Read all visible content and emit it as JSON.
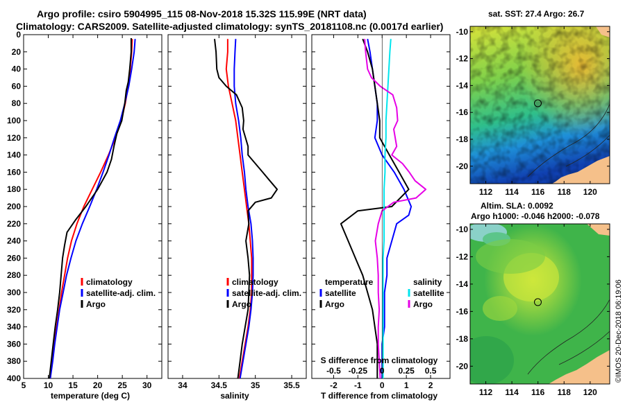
{
  "title": {
    "line1": "Argo profile: csiro 5904995_115 08-Nov-2018 15.32S 115.99E (NRT data)",
    "line2": "Climatology: CARS2009. Satellite-adjusted climatology: synTS_20181108.nc (0.0017d earlier)"
  },
  "colors": {
    "climatology": "#ff0000",
    "satellite": "#0000ff",
    "argo": "#000000",
    "sat_sal": "#00e5ee",
    "argo_sal_diff": "#e600e6",
    "land": "#f5c08a"
  },
  "chart_data": [
    {
      "type": "line",
      "id": "temperature",
      "xlabel": "temperature (deg C)",
      "ylabel": "",
      "xlim": [
        5,
        33
      ],
      "ylim": [
        400,
        0
      ],
      "xticks": [
        5,
        10,
        15,
        20,
        25,
        30
      ],
      "yticks": [
        0,
        20,
        40,
        60,
        80,
        100,
        120,
        140,
        160,
        180,
        200,
        220,
        240,
        260,
        280,
        300,
        320,
        340,
        360,
        380,
        400
      ],
      "legend": [
        "climatology",
        "satellite-adj. clim.",
        "Argo"
      ],
      "series": [
        {
          "name": "climatology",
          "color": "#ff0000",
          "points": [
            [
              27.0,
              5
            ],
            [
              26.9,
              20
            ],
            [
              26.6,
              40
            ],
            [
              26.2,
              60
            ],
            [
              25.6,
              80
            ],
            [
              24.8,
              100
            ],
            [
              23.6,
              120
            ],
            [
              22.2,
              140
            ],
            [
              20.6,
              160
            ],
            [
              18.9,
              180
            ],
            [
              17.2,
              200
            ],
            [
              15.8,
              220
            ],
            [
              14.7,
              240
            ],
            [
              13.9,
              260
            ],
            [
              13.3,
              280
            ],
            [
              12.7,
              300
            ],
            [
              12.2,
              320
            ],
            [
              11.7,
              340
            ],
            [
              11.2,
              360
            ],
            [
              10.8,
              380
            ],
            [
              10.4,
              400
            ]
          ]
        },
        {
          "name": "satellite-adj. clim.",
          "color": "#0000ff",
          "points": [
            [
              27.6,
              5
            ],
            [
              27.4,
              20
            ],
            [
              26.9,
              40
            ],
            [
              26.3,
              60
            ],
            [
              25.5,
              80
            ],
            [
              24.6,
              100
            ],
            [
              23.4,
              120
            ],
            [
              22.3,
              140
            ],
            [
              21.1,
              160
            ],
            [
              19.8,
              180
            ],
            [
              18.4,
              200
            ],
            [
              16.9,
              220
            ],
            [
              15.6,
              240
            ],
            [
              14.6,
              260
            ],
            [
              13.7,
              280
            ],
            [
              13.0,
              300
            ],
            [
              12.3,
              320
            ],
            [
              11.8,
              340
            ],
            [
              11.3,
              360
            ],
            [
              10.9,
              380
            ],
            [
              10.4,
              400
            ]
          ]
        },
        {
          "name": "Argo",
          "color": "#000000",
          "points": [
            [
              26.8,
              4
            ],
            [
              26.8,
              20
            ],
            [
              26.5,
              40
            ],
            [
              26.2,
              55
            ],
            [
              25.8,
              65
            ],
            [
              25.5,
              80
            ],
            [
              24.9,
              100
            ],
            [
              23.9,
              115
            ],
            [
              23.3,
              130
            ],
            [
              22.8,
              145
            ],
            [
              21.9,
              160
            ],
            [
              20.0,
              180
            ],
            [
              17.6,
              200
            ],
            [
              15.6,
              215
            ],
            [
              13.8,
              230
            ],
            [
              13.3,
              245
            ],
            [
              12.9,
              260
            ],
            [
              12.6,
              280
            ],
            [
              12.3,
              300
            ],
            [
              11.9,
              320
            ],
            [
              11.4,
              340
            ],
            [
              11.0,
              360
            ],
            [
              10.6,
              380
            ],
            [
              10.2,
              400
            ]
          ]
        }
      ]
    },
    {
      "type": "line",
      "id": "salinity",
      "xlabel": "salinity",
      "xlim": [
        33.8,
        35.7
      ],
      "ylim": [
        400,
        0
      ],
      "xticks": [
        34,
        34.5,
        35,
        35.5
      ],
      "legend": [
        "climatology",
        "satellite-adj. clim.",
        "Argo"
      ],
      "series": [
        {
          "name": "climatology",
          "color": "#ff0000",
          "points": [
            [
              34.62,
              5
            ],
            [
              34.62,
              20
            ],
            [
              34.6,
              40
            ],
            [
              34.63,
              60
            ],
            [
              34.68,
              80
            ],
            [
              34.73,
              100
            ],
            [
              34.76,
              120
            ],
            [
              34.79,
              140
            ],
            [
              34.82,
              160
            ],
            [
              34.85,
              180
            ],
            [
              34.88,
              200
            ],
            [
              34.91,
              220
            ],
            [
              34.93,
              240
            ],
            [
              34.95,
              260
            ],
            [
              34.95,
              280
            ],
            [
              34.95,
              300
            ],
            [
              34.93,
              320
            ],
            [
              34.9,
              340
            ],
            [
              34.86,
              360
            ],
            [
              34.82,
              380
            ],
            [
              34.78,
              400
            ]
          ]
        },
        {
          "name": "satellite-adj. clim.",
          "color": "#0000ff",
          "points": [
            [
              34.73,
              5
            ],
            [
              34.72,
              20
            ],
            [
              34.71,
              40
            ],
            [
              34.71,
              60
            ],
            [
              34.73,
              80
            ],
            [
              34.77,
              100
            ],
            [
              34.8,
              120
            ],
            [
              34.82,
              140
            ],
            [
              34.85,
              160
            ],
            [
              34.87,
              180
            ],
            [
              34.9,
              200
            ],
            [
              34.94,
              220
            ],
            [
              34.96,
              240
            ],
            [
              34.97,
              260
            ],
            [
              34.97,
              280
            ],
            [
              34.96,
              300
            ],
            [
              34.94,
              320
            ],
            [
              34.91,
              340
            ],
            [
              34.87,
              360
            ],
            [
              34.83,
              380
            ],
            [
              34.79,
              400
            ]
          ]
        },
        {
          "name": "Argo",
          "color": "#000000",
          "points": [
            [
              34.44,
              5
            ],
            [
              34.46,
              20
            ],
            [
              34.47,
              40
            ],
            [
              34.5,
              50
            ],
            [
              34.6,
              60
            ],
            [
              34.74,
              70
            ],
            [
              34.82,
              85
            ],
            [
              34.84,
              100
            ],
            [
              34.83,
              110
            ],
            [
              34.9,
              130
            ],
            [
              34.9,
              140
            ],
            [
              35.0,
              150
            ],
            [
              35.1,
              160
            ],
            [
              35.2,
              170
            ],
            [
              35.3,
              180
            ],
            [
              35.22,
              190
            ],
            [
              35.0,
              195
            ],
            [
              34.9,
              205
            ],
            [
              34.91,
              220
            ],
            [
              34.87,
              240
            ],
            [
              34.9,
              260
            ],
            [
              34.92,
              280
            ],
            [
              34.91,
              300
            ],
            [
              34.9,
              320
            ],
            [
              34.86,
              340
            ],
            [
              34.82,
              360
            ],
            [
              34.79,
              380
            ],
            [
              34.76,
              400
            ]
          ]
        }
      ]
    },
    {
      "type": "line",
      "id": "difference",
      "xlabel": "T difference from climatology",
      "x2label": "S difference from climatology",
      "xlim": [
        -2.9,
        2.8
      ],
      "ylim": [
        400,
        0
      ],
      "xticks": [
        -2,
        -1,
        0,
        1,
        2
      ],
      "s_ticks": [
        -0.5,
        -0.25,
        0,
        0.25,
        0.5
      ],
      "s_ticklabels": [
        "-0.5",
        "-0.25",
        "0",
        "0.25",
        "0.5"
      ],
      "legend_temperature": {
        "title": "temperature",
        "items": [
          "satellite",
          "Argo"
        ]
      },
      "legend_salinity": {
        "title": "salinity",
        "items": [
          "satellite",
          "Argo"
        ]
      },
      "series": [
        {
          "name": "T satellite",
          "color": "#0000ff",
          "points": [
            [
              -0.6,
              5
            ],
            [
              -0.5,
              20
            ],
            [
              -0.4,
              40
            ],
            [
              -0.3,
              60
            ],
            [
              -0.2,
              80
            ],
            [
              -0.2,
              100
            ],
            [
              -0.3,
              120
            ],
            [
              0.0,
              140
            ],
            [
              0.5,
              160
            ],
            [
              0.9,
              180
            ],
            [
              1.2,
              200
            ],
            [
              1.1,
              210
            ],
            [
              0.6,
              220
            ],
            [
              0.4,
              240
            ],
            [
              0.2,
              260
            ],
            [
              0.2,
              280
            ],
            [
              0.1,
              300
            ],
            [
              0.1,
              320
            ],
            [
              0.1,
              340
            ],
            [
              0.0,
              360
            ],
            [
              0.0,
              380
            ],
            [
              0.0,
              400
            ]
          ]
        },
        {
          "name": "T Argo",
          "color": "#000000",
          "points": [
            [
              -0.8,
              5
            ],
            [
              -0.6,
              20
            ],
            [
              -0.4,
              40
            ],
            [
              -0.3,
              60
            ],
            [
              -0.2,
              80
            ],
            [
              -0.1,
              100
            ],
            [
              -0.1,
              120
            ],
            [
              0.3,
              140
            ],
            [
              0.7,
              160
            ],
            [
              1.1,
              180
            ],
            [
              0.4,
              200
            ],
            [
              -1.0,
              205
            ],
            [
              -1.7,
              220
            ],
            [
              -1.4,
              240
            ],
            [
              -1.1,
              260
            ],
            [
              -0.8,
              280
            ],
            [
              -0.6,
              300
            ],
            [
              -0.4,
              320
            ],
            [
              -0.3,
              340
            ],
            [
              -0.2,
              360
            ],
            [
              -0.2,
              380
            ],
            [
              -0.2,
              400
            ]
          ]
        },
        {
          "name": "S satellite",
          "color": "#00e5ee",
          "points": [
            [
              0.09,
              5
            ],
            [
              0.08,
              20
            ],
            [
              0.07,
              40
            ],
            [
              0.06,
              60
            ],
            [
              0.05,
              80
            ],
            [
              0.04,
              100
            ],
            [
              0.04,
              120
            ],
            [
              0.03,
              140
            ],
            [
              0.03,
              160
            ],
            [
              0.02,
              180
            ],
            [
              0.02,
              200
            ],
            [
              0.02,
              220
            ],
            [
              0.02,
              240
            ],
            [
              0.01,
              260
            ],
            [
              0.01,
              280
            ],
            [
              0.01,
              300
            ],
            [
              0.01,
              320
            ],
            [
              0.01,
              340
            ],
            [
              0.01,
              360
            ],
            [
              0.01,
              380
            ],
            [
              0.01,
              400
            ]
          ]
        },
        {
          "name": "S Argo",
          "color": "#e600e6",
          "points": [
            [
              -0.18,
              5
            ],
            [
              -0.17,
              20
            ],
            [
              -0.15,
              40
            ],
            [
              -0.11,
              50
            ],
            [
              -0.02,
              60
            ],
            [
              0.11,
              70
            ],
            [
              0.15,
              85
            ],
            [
              0.16,
              100
            ],
            [
              0.12,
              110
            ],
            [
              0.15,
              130
            ],
            [
              0.1,
              140
            ],
            [
              0.21,
              150
            ],
            [
              0.28,
              160
            ],
            [
              0.34,
              170
            ],
            [
              0.45,
              180
            ],
            [
              0.35,
              190
            ],
            [
              0.12,
              195
            ],
            [
              0.0,
              205
            ],
            [
              -0.04,
              220
            ],
            [
              -0.07,
              240
            ],
            [
              -0.05,
              260
            ],
            [
              -0.04,
              280
            ],
            [
              -0.04,
              300
            ],
            [
              -0.03,
              320
            ],
            [
              -0.04,
              340
            ],
            [
              -0.04,
              360
            ],
            [
              -0.03,
              380
            ],
            [
              -0.02,
              400
            ]
          ]
        }
      ]
    },
    {
      "type": "heatmap",
      "id": "sst-map",
      "title": "sat. SST: 27.4 Argo: 26.7",
      "xlim": [
        110.8,
        121.5
      ],
      "ylim": [
        -21.3,
        -9.6
      ],
      "xticks": [
        112,
        114,
        116,
        118,
        120
      ],
      "yticks": [
        -10,
        -12,
        -14,
        -16,
        -18,
        -20
      ],
      "marker": {
        "lon": 115.99,
        "lat": -15.32
      }
    },
    {
      "type": "heatmap",
      "id": "sla-map",
      "title": "Altim. SLA: 0.0092",
      "subtitle": "Argo h1000: -0.046 h2000: -0.078",
      "xlim": [
        110.8,
        121.5
      ],
      "ylim": [
        -21.3,
        -9.6
      ],
      "xticks": [
        112,
        114,
        116,
        118,
        120
      ],
      "yticks": [
        -10,
        -12,
        -14,
        -16,
        -18,
        -20
      ],
      "marker": {
        "lon": 115.99,
        "lat": -15.32
      }
    }
  ],
  "stamp": "©IMOS 20-Dec-2018 06:19:06"
}
